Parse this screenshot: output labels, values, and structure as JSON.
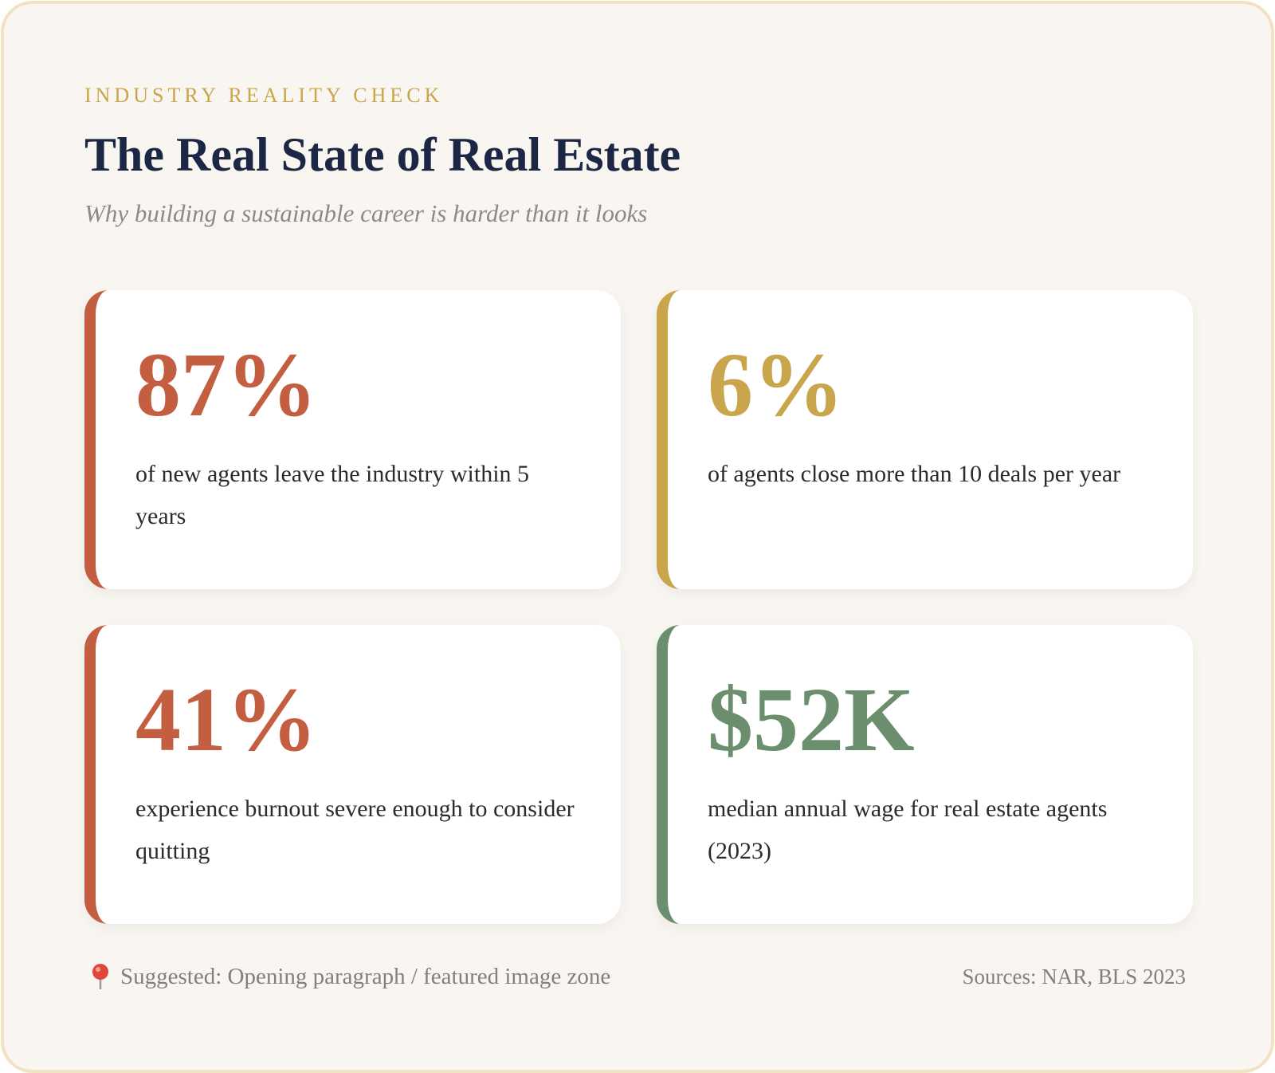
{
  "header": {
    "eyebrow": "INDUSTRY REALITY CHECK",
    "title": "The Real State of Real Estate",
    "subtitle": "Why building a sustainable career is harder than it looks"
  },
  "stats": [
    {
      "value": "87%",
      "label": "of new agents leave the industry within 5 years",
      "color": "#c45e40"
    },
    {
      "value": "6%",
      "label": "of agents close more than 10 deals per year",
      "color": "#c9a54c"
    },
    {
      "value": "41%",
      "label": "experience burnout severe enough to consider quitting",
      "color": "#c45e40"
    },
    {
      "value": "$52K",
      "label": "median annual wage for real estate agents (2023)",
      "color": "#6b8f6e"
    }
  ],
  "footer": {
    "note": "Suggested: Opening paragraph / featured image zone",
    "sources": "Sources: NAR, BLS 2023"
  }
}
